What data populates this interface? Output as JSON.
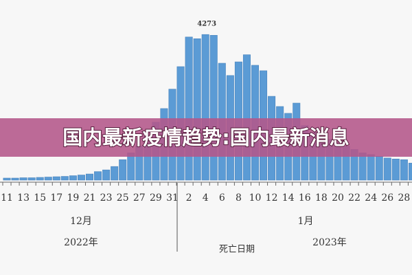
{
  "chart_data": {
    "type": "bar",
    "banner": "国内最新疫情趋势:国内最新消息",
    "categories": [
      "11",
      null,
      "13",
      null,
      "15",
      null,
      "17",
      null,
      "19",
      null,
      "21",
      null,
      "23",
      null,
      "25",
      null,
      "27",
      null,
      "29",
      null,
      "31",
      null,
      "2",
      null,
      "4",
      null,
      "6",
      null,
      "8",
      null,
      "10",
      null,
      "12",
      null,
      "14",
      null,
      "16",
      null,
      "18",
      null,
      "20",
      null,
      "22",
      null,
      "24",
      null,
      "26",
      null,
      "28",
      null
    ],
    "values": [
      60,
      60,
      70,
      70,
      80,
      90,
      100,
      110,
      130,
      150,
      180,
      250,
      300,
      400,
      600,
      800,
      1000,
      1300,
      1700,
      2100,
      2670,
      3330,
      4200,
      4150,
      4273,
      4250,
      3430,
      3070,
      3470,
      3680,
      3370,
      3210,
      2460,
      2160,
      1960,
      2260,
      1600,
      1400,
      1300,
      1200,
      1100,
      1000,
      900,
      800,
      750,
      700,
      650,
      620,
      600,
      500
    ],
    "value_labels": [
      null,
      null,
      null,
      null,
      null,
      null,
      null,
      null,
      null,
      null,
      null,
      null,
      null,
      null,
      null,
      null,
      null,
      null,
      null,
      null,
      null,
      null,
      null,
      null,
      "4273",
      null,
      null,
      null,
      null,
      null,
      null,
      null,
      null,
      null,
      null,
      null,
      null,
      null,
      null,
      null,
      null,
      null,
      null,
      null,
      null,
      null,
      null,
      null,
      null,
      null
    ],
    "color": "#5b9bd5",
    "ylim": [
      0,
      4600
    ],
    "month_labels": [
      "12月",
      "1月"
    ],
    "year_labels": [
      "2022年",
      "2023年"
    ],
    "xlabel": "死亡日期"
  }
}
